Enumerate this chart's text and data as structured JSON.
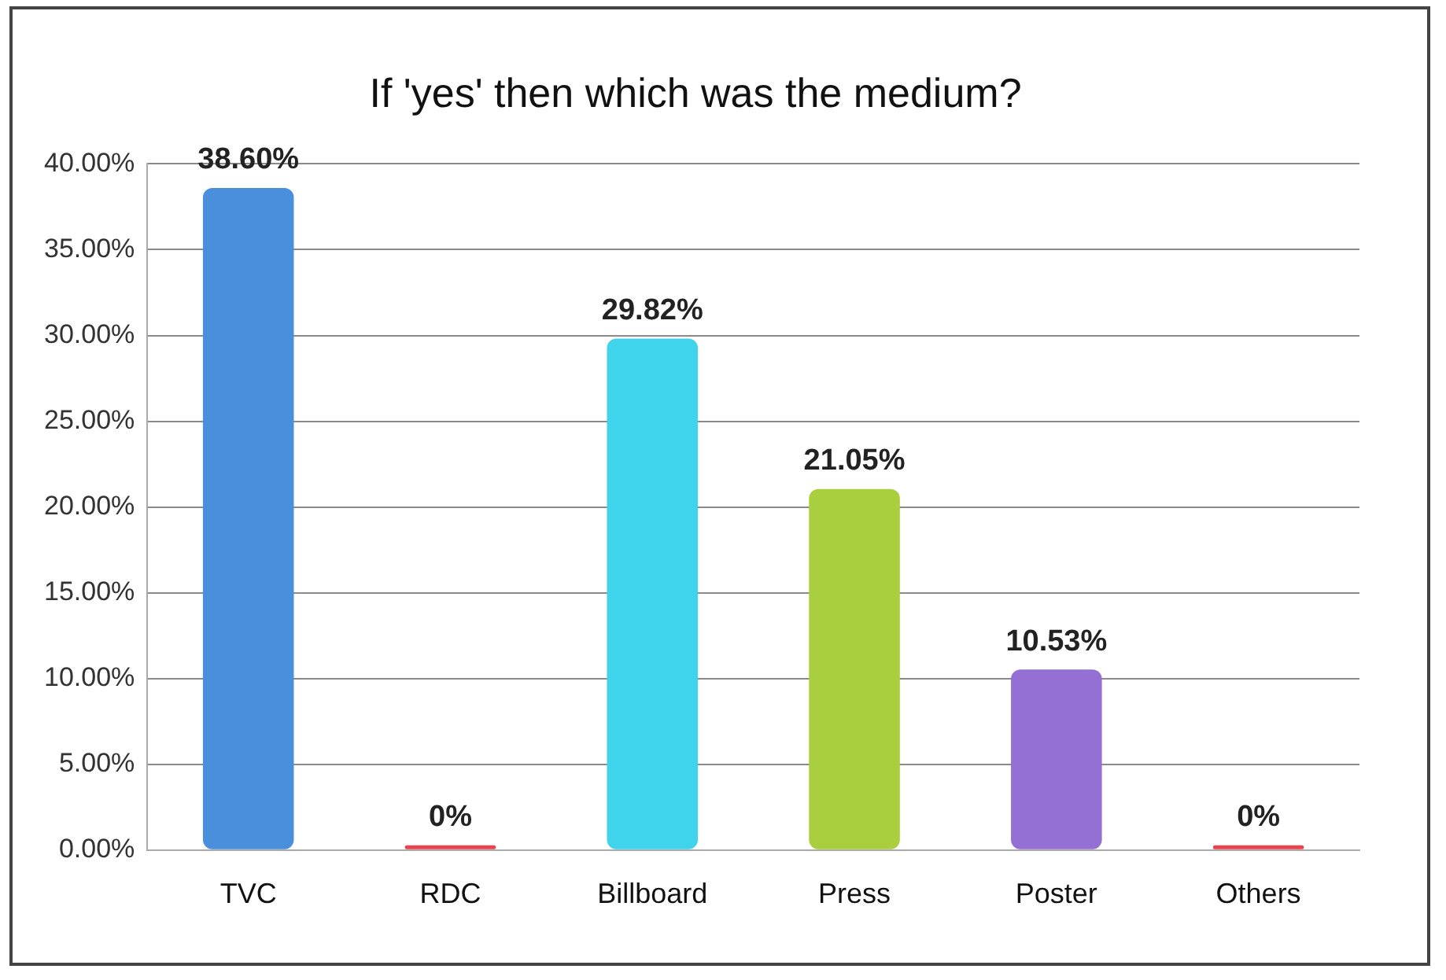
{
  "chart_data": {
    "type": "bar",
    "title": "If 'yes' then which was the medium?",
    "categories": [
      "TVC",
      "RDC",
      "Billboard",
      "Press",
      "Poster",
      "Others"
    ],
    "values": [
      38.6,
      0,
      29.82,
      21.05,
      10.53,
      0
    ],
    "colors": [
      "#4a8fdc",
      "#e8434f",
      "#3fd3ec",
      "#a9cf3e",
      "#9470d4",
      "#e8434f"
    ],
    "value_labels": [
      "38.60%",
      "0%",
      "29.82%",
      "21.05%",
      "10.53%",
      "0%"
    ],
    "ylim": [
      0,
      40
    ],
    "yticks": [
      {
        "value": 0,
        "label": "0.00%"
      },
      {
        "value": 5,
        "label": "5.00%"
      },
      {
        "value": 10,
        "label": "10.00%"
      },
      {
        "value": 15,
        "label": "15.00%"
      },
      {
        "value": 20,
        "label": "20.00%"
      },
      {
        "value": 25,
        "label": "25.00%"
      },
      {
        "value": 30,
        "label": "30.00%"
      },
      {
        "value": 35,
        "label": "35.00%"
      },
      {
        "value": 40,
        "label": "40.00%"
      }
    ],
    "grid": "y",
    "legend": false
  }
}
